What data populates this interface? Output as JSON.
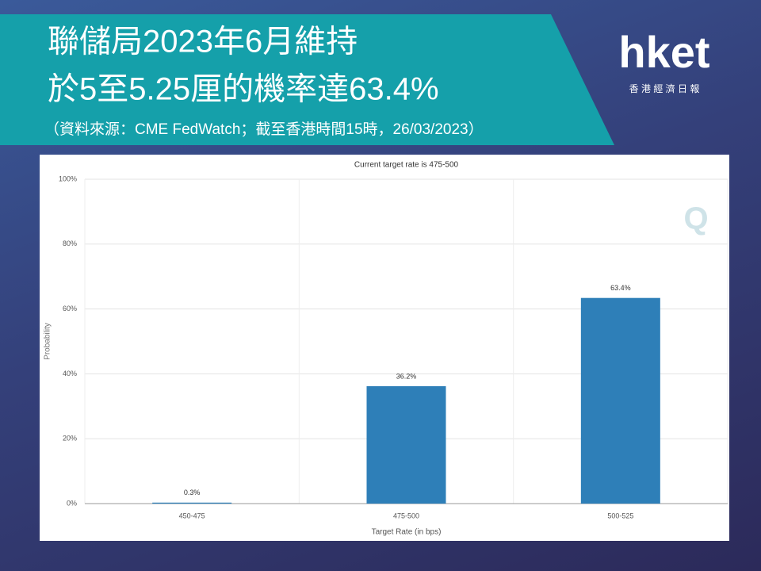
{
  "header": {
    "title_line1": "聯儲局2023年6月維持",
    "title_line2": "於5至5.25厘的機率達63.4%",
    "source": "（資料來源：CME FedWatch；截至香港時間15時，26/03/2023）"
  },
  "logo": {
    "brand": "hket",
    "tagline": "香 港 經 濟 日 報"
  },
  "chart_data": {
    "type": "bar",
    "title": "Current target rate is 475-500",
    "categories": [
      "450-475",
      "475-500",
      "500-525"
    ],
    "values": [
      0.3,
      36.2,
      63.4
    ],
    "value_labels": [
      "0.3%",
      "36.2%",
      "63.4%"
    ],
    "color": "#2e7fb8",
    "xlabel": "Target Rate (in bps)",
    "ylabel": "Probability",
    "ylim": [
      0,
      100
    ],
    "yticks": [
      {
        "value": 0,
        "label": "0%"
      },
      {
        "value": 20,
        "label": "20%"
      },
      {
        "value": 40,
        "label": "40%"
      },
      {
        "value": 60,
        "label": "60%"
      },
      {
        "value": 80,
        "label": "80%"
      },
      {
        "value": 100,
        "label": "100%"
      }
    ],
    "grid": true
  }
}
